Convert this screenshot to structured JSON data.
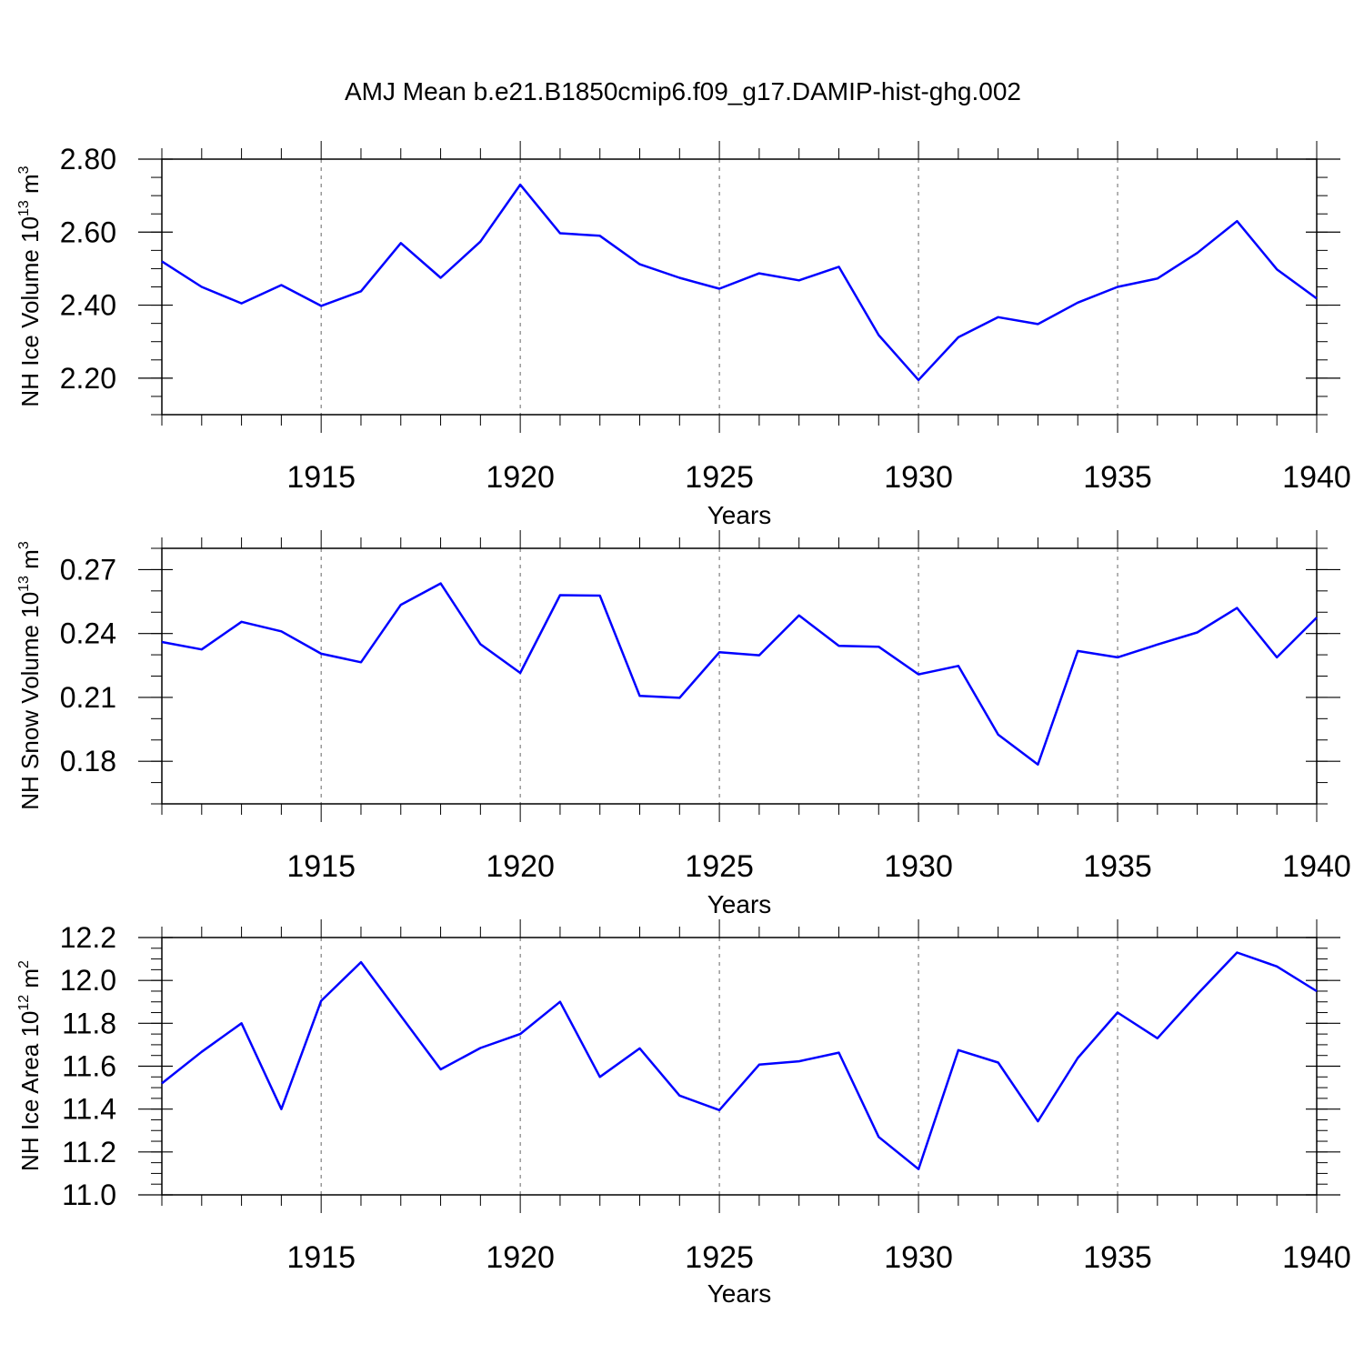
{
  "figure_title": "AMJ Mean b.e21.B1850cmip6.f09_g17.DAMIP-hist-ghg.002",
  "colors": {
    "line": "#0000ff",
    "axis": "#000000",
    "grid": "#666666"
  },
  "chart_data": [
    {
      "type": "line",
      "ylabel": {
        "main": "NH Ice Volume 10",
        "exp": "13",
        "unit": " m",
        "unit_exp": "3"
      },
      "xlabel": "Years",
      "xlim": [
        1911,
        1940
      ],
      "ylim": [
        2.1,
        2.8
      ],
      "x_ticks": [
        1915,
        1920,
        1925,
        1930,
        1935,
        1940
      ],
      "x_tick_labels": [
        "1915",
        "1920",
        "1925",
        "1930",
        "1935",
        "1940"
      ],
      "y_ticks": [
        2.2,
        2.4,
        2.6,
        2.8
      ],
      "y_tick_labels": [
        "2.20",
        "2.40",
        "2.60",
        "2.80"
      ],
      "y_minor_step": 0.05,
      "grid": "vertical-dashed",
      "series": [
        {
          "name": "NH Ice Volume",
          "x": [
            1911,
            1912,
            1913,
            1914,
            1915,
            1916,
            1917,
            1918,
            1919,
            1920,
            1921,
            1922,
            1923,
            1924,
            1925,
            1926,
            1927,
            1928,
            1929,
            1930,
            1931,
            1932,
            1933,
            1934,
            1935,
            1936,
            1937,
            1938,
            1939,
            1940
          ],
          "values": [
            2.52,
            2.45,
            2.405,
            2.455,
            2.398,
            2.438,
            2.57,
            2.475,
            2.574,
            2.73,
            2.597,
            2.59,
            2.512,
            2.475,
            2.445,
            2.487,
            2.468,
            2.505,
            2.318,
            2.195,
            2.312,
            2.367,
            2.348,
            2.407,
            2.45,
            2.473,
            2.543,
            2.63,
            2.498,
            2.418
          ]
        }
      ]
    },
    {
      "type": "line",
      "ylabel": {
        "main": "NH Snow Volume 10",
        "exp": "13",
        "unit": " m",
        "unit_exp": "3"
      },
      "xlabel": "Years",
      "xlim": [
        1911,
        1940
      ],
      "ylim": [
        0.16,
        0.28
      ],
      "x_ticks": [
        1915,
        1920,
        1925,
        1930,
        1935,
        1940
      ],
      "x_tick_labels": [
        "1915",
        "1920",
        "1925",
        "1930",
        "1935",
        "1940"
      ],
      "y_ticks": [
        0.18,
        0.21,
        0.24,
        0.27
      ],
      "y_tick_labels": [
        "0.18",
        "0.21",
        "0.24",
        "0.27"
      ],
      "y_minor_step": 0.01,
      "grid": "vertical-dashed",
      "series": [
        {
          "name": "NH Snow Volume",
          "x": [
            1911,
            1912,
            1913,
            1914,
            1915,
            1916,
            1917,
            1918,
            1919,
            1920,
            1921,
            1922,
            1923,
            1924,
            1925,
            1926,
            1927,
            1928,
            1929,
            1930,
            1931,
            1932,
            1933,
            1934,
            1935,
            1936,
            1937,
            1938,
            1939,
            1940
          ],
          "values": [
            0.236,
            0.2325,
            0.2455,
            0.241,
            0.2305,
            0.2265,
            0.2535,
            0.2635,
            0.235,
            0.2215,
            0.258,
            0.2578,
            0.2107,
            0.2098,
            0.2312,
            0.2298,
            0.2485,
            0.2342,
            0.2338,
            0.2208,
            0.2248,
            0.1925,
            0.1785,
            0.2318,
            0.2288,
            0.2348,
            0.2405,
            0.252,
            0.2288,
            0.2475
          ]
        }
      ]
    },
    {
      "type": "line",
      "ylabel": {
        "main": "NH Ice Area 10",
        "exp": "12",
        "unit": " m",
        "unit_exp": "2"
      },
      "xlabel": "Years",
      "xlim": [
        1911,
        1940
      ],
      "ylim": [
        11.0,
        12.2
      ],
      "x_ticks": [
        1915,
        1920,
        1925,
        1930,
        1935,
        1940
      ],
      "x_tick_labels": [
        "1915",
        "1920",
        "1925",
        "1930",
        "1935",
        "1940"
      ],
      "y_ticks": [
        11.0,
        11.2,
        11.4,
        11.6,
        11.8,
        12.0,
        12.2
      ],
      "y_tick_labels": [
        "11.0",
        "11.2",
        "11.4",
        "11.6",
        "11.8",
        "12.0",
        "12.2"
      ],
      "y_minor_step": 0.05,
      "grid": "vertical-dashed",
      "series": [
        {
          "name": "NH Ice Area",
          "x": [
            1911,
            1912,
            1913,
            1914,
            1915,
            1916,
            1917,
            1918,
            1919,
            1920,
            1921,
            1922,
            1923,
            1924,
            1925,
            1926,
            1927,
            1928,
            1929,
            1930,
            1931,
            1932,
            1933,
            1934,
            1935,
            1936,
            1937,
            1938,
            1939,
            1940
          ],
          "values": [
            11.52,
            11.667,
            11.8,
            11.4,
            11.905,
            12.085,
            11.835,
            11.585,
            11.685,
            11.75,
            11.9,
            11.55,
            11.683,
            11.463,
            11.395,
            11.607,
            11.623,
            11.663,
            11.27,
            11.12,
            11.675,
            11.617,
            11.343,
            11.638,
            11.85,
            11.73,
            11.935,
            12.13,
            12.065,
            11.95
          ]
        }
      ]
    }
  ]
}
